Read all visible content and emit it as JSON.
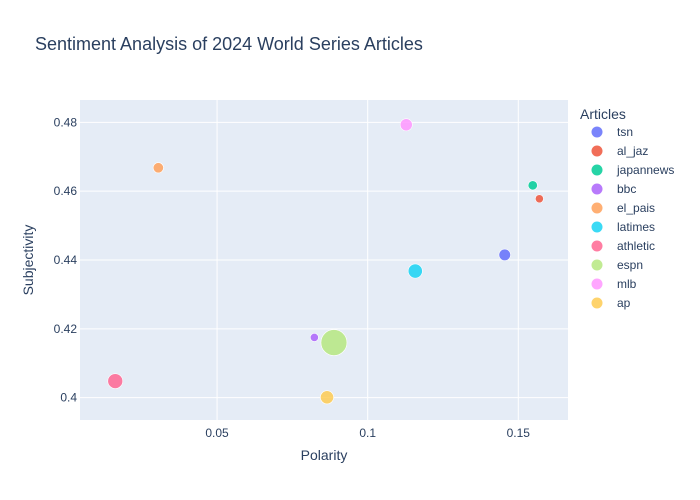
{
  "chart_data": {
    "type": "scatter",
    "title": "Sentiment Analysis of 2024 World Series Articles",
    "xlabel": "Polarity",
    "ylabel": "Subjectivity",
    "xlim": [
      0.0045,
      0.1665
    ],
    "ylim": [
      0.3935,
      0.4865
    ],
    "xticks": [
      0.05,
      0.1,
      0.15
    ],
    "xtick_labels": [
      "0.05",
      "0.1",
      "0.15"
    ],
    "yticks": [
      0.4,
      0.42,
      0.44,
      0.46,
      0.48
    ],
    "ytick_labels": [
      "0.4",
      "0.42",
      "0.44",
      "0.46",
      "0.48"
    ],
    "legend_title": "Articles",
    "series": [
      {
        "name": "tsn",
        "color": "#636efa",
        "x": 0.1455,
        "y": 0.4415,
        "size": 2
      },
      {
        "name": "al_jaz",
        "color": "#EF553B",
        "x": 0.157,
        "y": 0.4578,
        "size": 1
      },
      {
        "name": "japannews",
        "color": "#00cc96",
        "x": 0.1548,
        "y": 0.4617,
        "size": 1.3
      },
      {
        "name": "bbc",
        "color": "#ab63fa",
        "x": 0.0823,
        "y": 0.4175,
        "size": 1
      },
      {
        "name": "el_pais",
        "color": "#FFA15A",
        "x": 0.0305,
        "y": 0.4668,
        "size": 1.6
      },
      {
        "name": "latimes",
        "color": "#19d3f3",
        "x": 0.1158,
        "y": 0.4368,
        "size": 3
      },
      {
        "name": "athletic",
        "color": "#FF6692",
        "x": 0.0162,
        "y": 0.4048,
        "size": 3.3
      },
      {
        "name": "espn",
        "color": "#B6E880",
        "x": 0.0888,
        "y": 0.416,
        "size": 10
      },
      {
        "name": "mlb",
        "color": "#FF97FF",
        "x": 0.1128,
        "y": 0.4793,
        "size": 2.2
      },
      {
        "name": "ap",
        "color": "#FECB52",
        "x": 0.0865,
        "y": 0.4001,
        "size": 2.6
      }
    ]
  }
}
